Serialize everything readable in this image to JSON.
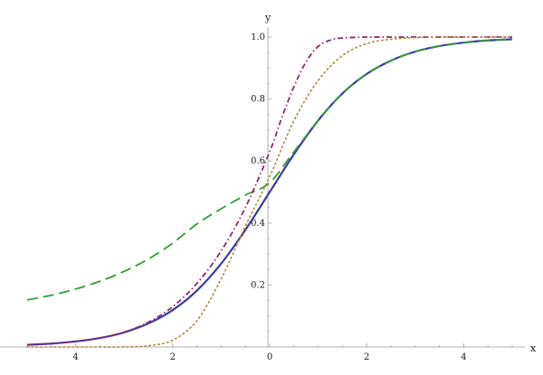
{
  "chart_data": {
    "type": "line",
    "title": "",
    "xlabel": "x",
    "ylabel": "y",
    "xlim": [
      -5,
      5
    ],
    "ylim": [
      0,
      1.0
    ],
    "grid": false,
    "x_ticks": [
      -4,
      -2,
      0,
      2,
      4
    ],
    "x_tick_labels": [
      "4",
      "2",
      "0",
      "2",
      "4"
    ],
    "y_ticks": [
      0.2,
      0.4,
      0.6,
      0.8,
      1.0
    ],
    "y_tick_labels": [
      "0.2",
      "0.4",
      "0.6",
      "0.8",
      "1.0"
    ],
    "series": [
      {
        "color": "#3b3ba8",
        "style": "solid",
        "x": [
          -5,
          -4.5,
          -4,
          -3.5,
          -3,
          -2.5,
          -2,
          -1.5,
          -1,
          -0.5,
          0,
          0.5,
          1,
          1.5,
          2,
          2.5,
          3,
          3.5,
          4,
          4.5,
          5
        ],
        "y": [
          0.007,
          0.011,
          0.018,
          0.029,
          0.047,
          0.076,
          0.119,
          0.182,
          0.269,
          0.378,
          0.5,
          0.622,
          0.731,
          0.818,
          0.881,
          0.924,
          0.953,
          0.971,
          0.982,
          0.989,
          0.993
        ]
      },
      {
        "color": "#3a9a3a",
        "style": "dashed",
        "x": [
          -5,
          -4.5,
          -4,
          -3.5,
          -3,
          -2.5,
          -2,
          -1.5,
          -1,
          -0.5,
          0,
          0.5,
          1,
          1.5,
          2,
          2.5,
          3,
          3.5,
          4,
          4.5,
          5
        ],
        "y": [
          0.152,
          0.167,
          0.187,
          0.212,
          0.244,
          0.284,
          0.335,
          0.397,
          0.446,
          0.49,
          0.53,
          0.63,
          0.731,
          0.818,
          0.881,
          0.924,
          0.953,
          0.971,
          0.982,
          0.989,
          0.993
        ]
      },
      {
        "color": "#8b2a6e",
        "style": "dashdot",
        "x": [
          -5,
          -4.5,
          -4,
          -3.5,
          -3,
          -2.5,
          -2,
          -1.5,
          -1,
          -0.5,
          0,
          0.25,
          0.5,
          0.75,
          1,
          1.25,
          1.5,
          2,
          2.5,
          3,
          4,
          5
        ],
        "y": [
          0.007,
          0.011,
          0.018,
          0.029,
          0.048,
          0.08,
          0.13,
          0.205,
          0.31,
          0.45,
          0.63,
          0.74,
          0.84,
          0.92,
          0.97,
          0.99,
          0.997,
          1.0,
          1.0,
          1.0,
          1.0,
          1.0
        ]
      },
      {
        "color": "#b08a3a",
        "style": "dotted",
        "x": [
          -5,
          -4.5,
          -4,
          -3.5,
          -3,
          -2.5,
          -2,
          -1.5,
          -1,
          -0.5,
          0,
          0.5,
          1,
          1.5,
          2,
          2.5,
          3,
          3.5,
          4,
          4.5,
          5
        ],
        "y": [
          0.0,
          0.0,
          0.0,
          0.0,
          0.0,
          0.004,
          0.022,
          0.085,
          0.22,
          0.39,
          0.55,
          0.73,
          0.86,
          0.94,
          0.979,
          0.993,
          0.998,
          1.0,
          1.0,
          1.0,
          1.0
        ]
      }
    ]
  }
}
